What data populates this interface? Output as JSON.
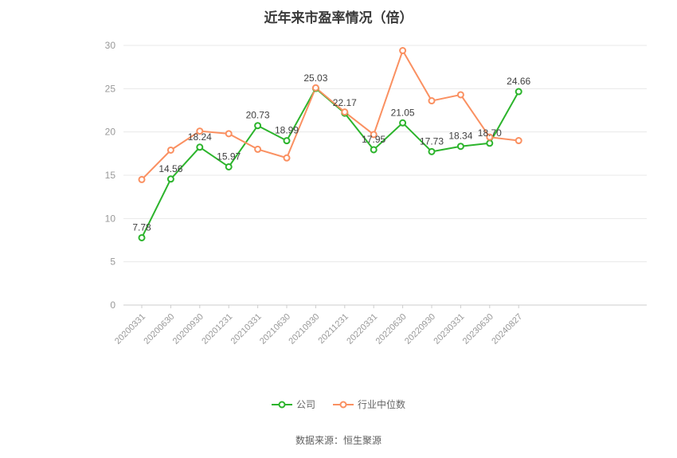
{
  "title": "近年来市盈率情况（倍）",
  "source": "数据来源：恒生聚源",
  "legend": {
    "items": [
      {
        "label": "公司",
        "color": "#2cb42c"
      },
      {
        "label": "行业中位数",
        "color": "#fa9061"
      }
    ]
  },
  "colors": {
    "company": "#2cb42c",
    "industry_median": "#fa9061",
    "axis_label": "#999999",
    "grid": "#e8e8e8",
    "data_label": "#404040",
    "title": "#3a3a3a",
    "source": "#5f5f5f"
  },
  "chart_data": {
    "type": "line",
    "title": "近年来市盈率情况（倍）",
    "categories": [
      "20200331",
      "20200630",
      "20200930",
      "20201231",
      "20210331",
      "20210630",
      "20210930",
      "20211231",
      "20220331",
      "20220630",
      "20220930",
      "20230331",
      "20230630",
      "20240827"
    ],
    "series": [
      {
        "name": "公司",
        "color": "#2cb42c",
        "show_labels": true,
        "values": [
          7.78,
          14.56,
          18.24,
          15.97,
          20.73,
          18.99,
          25.03,
          22.17,
          17.95,
          21.05,
          17.73,
          18.34,
          18.7,
          24.66
        ]
      },
      {
        "name": "行业中位数",
        "color": "#fa9061",
        "show_labels": false,
        "values": [
          14.5,
          17.9,
          20.1,
          19.8,
          18.0,
          17.0,
          25.1,
          22.3,
          19.7,
          29.4,
          23.6,
          24.3,
          19.4,
          19.0
        ]
      }
    ],
    "xlabel": "",
    "ylabel": "",
    "ylim": [
      0,
      30
    ],
    "yticks": [
      0,
      5,
      10,
      15,
      20,
      25,
      30
    ],
    "grid": true,
    "legend_position": "bottom"
  }
}
